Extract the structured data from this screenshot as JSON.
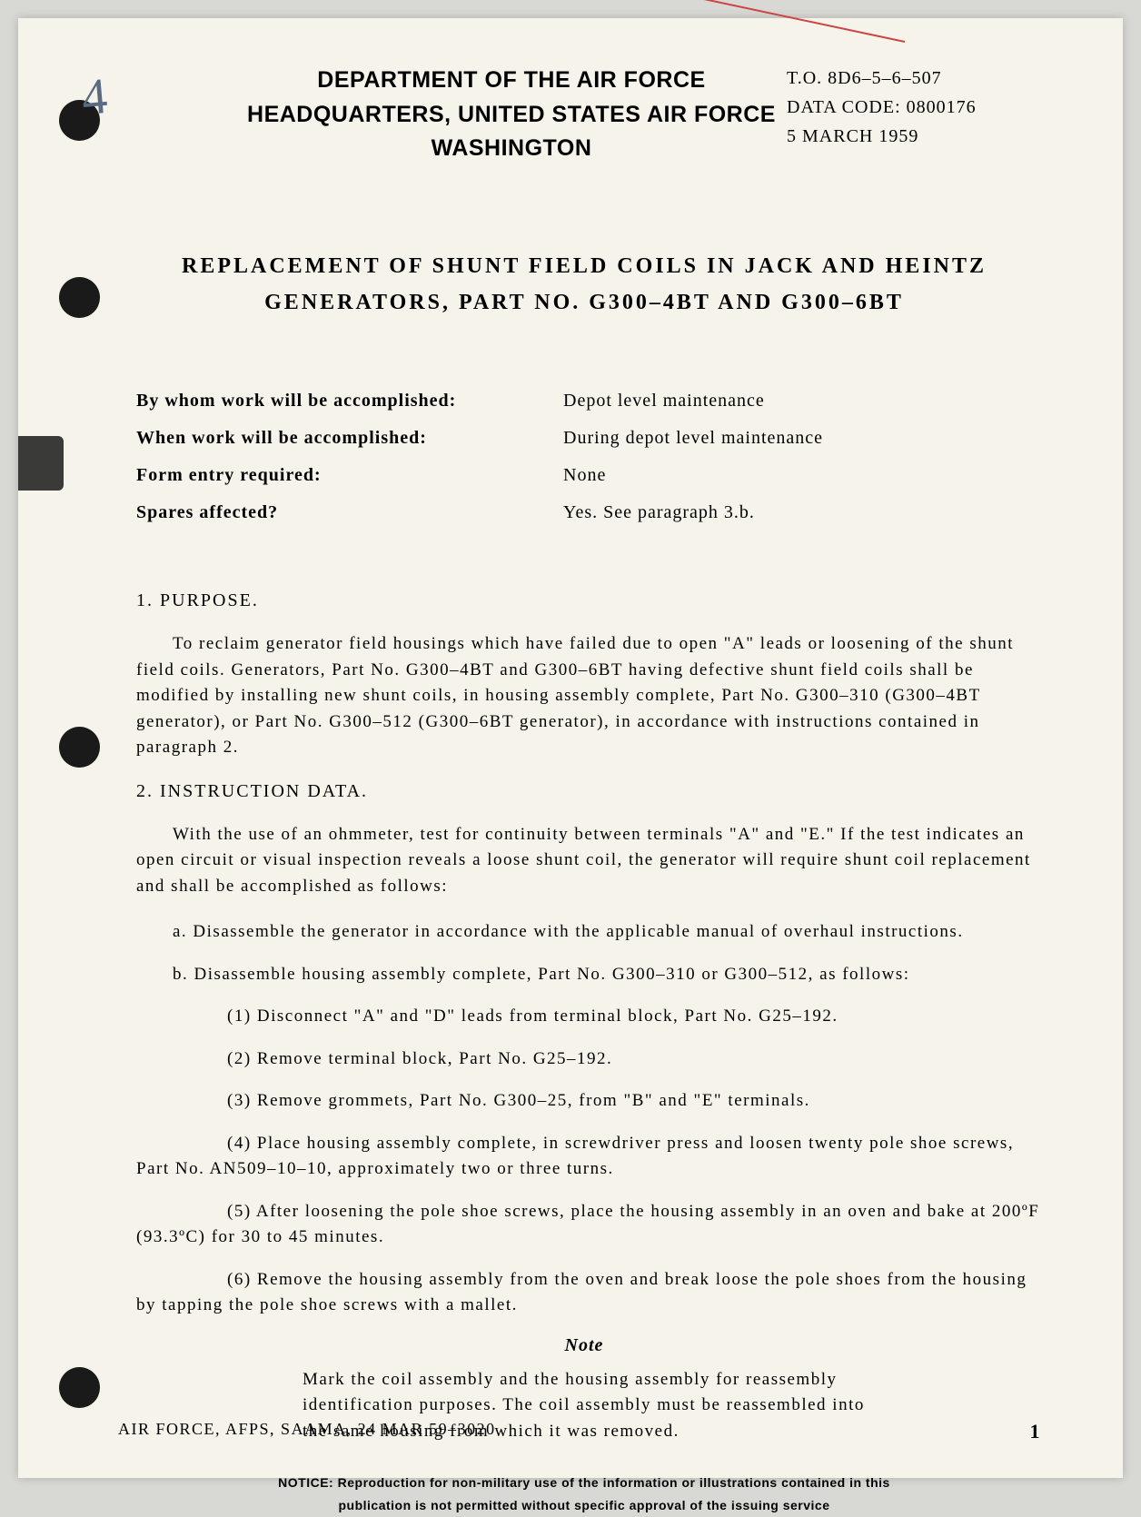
{
  "annotations": {
    "pen_mark": "4"
  },
  "header": {
    "dept_line1": "DEPARTMENT OF THE AIR FORCE",
    "dept_line2": "HEADQUARTERS, UNITED STATES AIR FORCE",
    "dept_line3": "WASHINGTON",
    "to_number": "T.O. 8D6–5–6–507",
    "data_code": "DATA CODE: 0800176",
    "date": "5 MARCH 1959"
  },
  "title": {
    "line1": "REPLACEMENT OF SHUNT FIELD COILS IN JACK AND HEINTZ",
    "line2": "GENERATORS, PART NO. G300–4BT AND G300–6BT"
  },
  "info": {
    "rows": [
      {
        "label": "By whom work will be accomplished:",
        "value": "Depot level maintenance"
      },
      {
        "label": "When work will be accomplished:",
        "value": "During depot level maintenance"
      },
      {
        "label": "Form entry required:",
        "value": "None"
      },
      {
        "label": "Spares affected?",
        "value": "Yes. See paragraph 3.b."
      }
    ]
  },
  "sections": {
    "purpose": {
      "heading": "1. PURPOSE.",
      "body": "To reclaim generator field housings which have failed due to open \"A\" leads or loosening of the shunt field coils. Generators, Part No. G300–4BT and G300–6BT having defective shunt field coils shall be modified by installing new shunt coils, in housing assembly complete, Part No. G300–310 (G300–4BT generator), or Part No. G300–512 (G300–6BT generator), in accordance with instructions contained in paragraph 2."
    },
    "instruction": {
      "heading": "2. INSTRUCTION DATA.",
      "intro": "With the use of an ohmmeter, test for continuity between terminals \"A\" and \"E.\" If the test indicates an open circuit or visual inspection reveals a loose shunt coil, the generator will require shunt coil replacement and shall be accomplished as follows:",
      "item_a": "a. Disassemble the generator in accordance with the applicable manual of overhaul instructions.",
      "item_b": "b. Disassemble housing assembly complete, Part No. G300–310 or G300–512, as follows:",
      "sub_1": "(1) Disconnect \"A\" and \"D\" leads from terminal block, Part No. G25–192.",
      "sub_2": "(2) Remove terminal block, Part No. G25–192.",
      "sub_3": "(3) Remove grommets, Part No. G300–25, from \"B\" and \"E\" terminals.",
      "sub_4": "(4) Place housing assembly complete, in screwdriver press and loosen twenty pole shoe screws, Part No. AN509–10–10, approximately two or three turns.",
      "sub_5": "(5) After loosening the pole shoe screws, place the housing assembly in an oven and bake at 200ºF (93.3ºC) for 30 to 45 minutes.",
      "sub_6": "(6) Remove the housing assembly from the oven and break loose the pole shoes from the housing by tapping the pole shoe screws with a mallet.",
      "note_label": "Note",
      "note_body": "Mark the coil assembly and the housing assembly for reassembly identification purposes. The coil assembly must be reassembled into the same housing from which it was removed."
    }
  },
  "notice": {
    "label": "NOTICE:",
    "line1": "Reproduction for non-military use of the information or illustrations contained in this",
    "line2": "publication is not permitted without specific approval of the issuing service"
  },
  "footer": {
    "left": "AIR FORCE, AFPS, SAAMA, 24 MAR 59–3020",
    "page": "1"
  },
  "colors": {
    "page_bg": "#f5f3ea",
    "text": "#1a1a1a",
    "pen": "#5a6a82",
    "red": "#c44"
  }
}
